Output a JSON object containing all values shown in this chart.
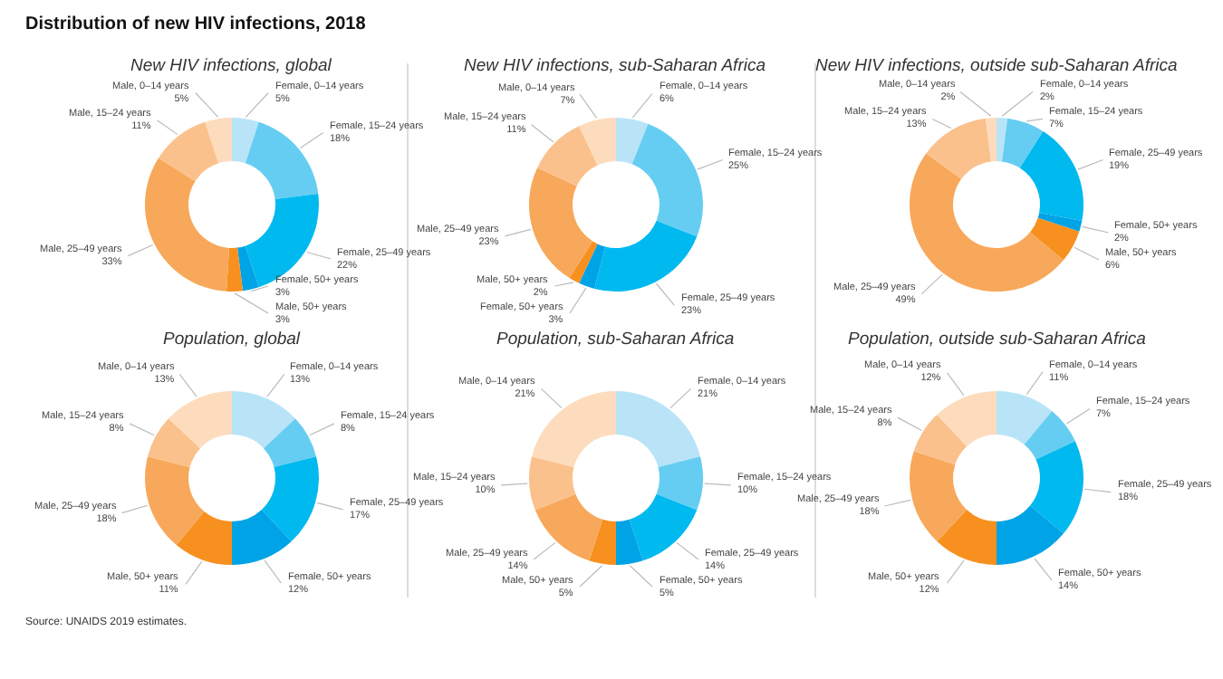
{
  "chart_data": [
    {
      "type": "donut",
      "title": "New HIV infections, global",
      "annotations": [
        "Distribution of new HIV infections, 2018",
        "Source: UNAIDS 2019 estimates."
      ],
      "categories": [
        "Female, 0–14 years",
        "Female, 15–24 years",
        "Female, 25–49 years",
        "Female, 50+ years",
        "Male, 50+ years",
        "Male, 25–49 years",
        "Male, 15–24 years",
        "Male, 0–14 years"
      ],
      "values": [
        5,
        18,
        22,
        3,
        3,
        33,
        11,
        5
      ],
      "value_labels": [
        "5%",
        "18%",
        "22%",
        "3%",
        "3%",
        "33%",
        "11%",
        "5%"
      ],
      "colors": [
        "#b9e4f8",
        "#66cdf2",
        "#00b9ef",
        "#00a3e6",
        "#f7901e",
        "#f7a85a",
        "#fbc18c",
        "#fddcbd"
      ]
    },
    {
      "type": "donut",
      "title": "New HIV infections, sub-Saharan Africa",
      "categories": [
        "Female, 0–14 years",
        "Female, 15–24 years",
        "Female, 25–49 years",
        "Female, 50+ years",
        "Male, 50+ years",
        "Male, 25–49 years",
        "Male, 15–24 years",
        "Male, 0–14 years"
      ],
      "values": [
        6,
        25,
        23,
        3,
        2,
        23,
        11,
        7
      ],
      "value_labels": [
        "6%",
        "25%",
        "23%",
        "3%",
        "2%",
        "23%",
        "11%",
        "7%"
      ],
      "colors": [
        "#b9e4f8",
        "#66cdf2",
        "#00b9ef",
        "#00a3e6",
        "#f7901e",
        "#f7a85a",
        "#fbc18c",
        "#fddcbd"
      ]
    },
    {
      "type": "donut",
      "title": "New HIV infections, outside sub-Saharan Africa",
      "categories": [
        "Female, 0–14 years",
        "Female, 15–24 years",
        "Female, 25–49 years",
        "Female, 50+ years",
        "Male, 50+ years",
        "Male, 25–49 years",
        "Male, 15–24 years",
        "Male, 0–14 years"
      ],
      "values": [
        2,
        7,
        19,
        2,
        6,
        49,
        13,
        2
      ],
      "value_labels": [
        "2%",
        "7%",
        "19%",
        "2%",
        "6%",
        "49%",
        "13%",
        "2%"
      ],
      "colors": [
        "#b9e4f8",
        "#66cdf2",
        "#00b9ef",
        "#00a3e6",
        "#f7901e",
        "#f7a85a",
        "#fbc18c",
        "#fddcbd"
      ]
    },
    {
      "type": "donut",
      "title": "Population, global",
      "categories": [
        "Female, 0–14 years",
        "Female, 15–24 years",
        "Female, 25–49 years",
        "Female, 50+ years",
        "Male, 50+ years",
        "Male, 25–49 years",
        "Male, 15–24 years",
        "Male, 0–14 years"
      ],
      "values": [
        13,
        8,
        17,
        12,
        11,
        18,
        8,
        13
      ],
      "value_labels": [
        "13%",
        "8%",
        "17%",
        "12%",
        "11%",
        "18%",
        "8%",
        "13%"
      ],
      "colors": [
        "#b9e4f8",
        "#66cdf2",
        "#00b9ef",
        "#00a3e6",
        "#f7901e",
        "#f7a85a",
        "#fbc18c",
        "#fddcbd"
      ]
    },
    {
      "type": "donut",
      "title": "Population, sub-Saharan Africa",
      "categories": [
        "Female, 0–14 years",
        "Female, 15–24 years",
        "Female, 25–49 years",
        "Female, 50+ years",
        "Male, 50+ years",
        "Male, 25–49 years",
        "Male, 15–24 years",
        "Male, 0–14 years"
      ],
      "values": [
        21,
        10,
        14,
        5,
        5,
        14,
        10,
        21
      ],
      "value_labels": [
        "21%",
        "10%",
        "14%",
        "5%",
        "5%",
        "14%",
        "10%",
        "21%"
      ],
      "colors": [
        "#b9e4f8",
        "#66cdf2",
        "#00b9ef",
        "#00a3e6",
        "#f7901e",
        "#f7a85a",
        "#fbc18c",
        "#fddcbd"
      ]
    },
    {
      "type": "donut",
      "title": "Population, outside sub-Saharan Africa",
      "categories": [
        "Female, 0–14 years",
        "Female, 15–24 years",
        "Female, 25–49 years",
        "Female, 50+ years",
        "Male, 50+ years",
        "Male, 25–49 years",
        "Male, 15–24 years",
        "Male, 0–14 years"
      ],
      "values": [
        11,
        7,
        18,
        14,
        12,
        18,
        8,
        12
      ],
      "value_labels": [
        "11%",
        "7%",
        "18%",
        "14%",
        "12%",
        "18%",
        "8%",
        "12%"
      ],
      "colors": [
        "#b9e4f8",
        "#66cdf2",
        "#00b9ef",
        "#00a3e6",
        "#f7901e",
        "#f7a85a",
        "#fbc18c",
        "#fddcbd"
      ]
    }
  ]
}
